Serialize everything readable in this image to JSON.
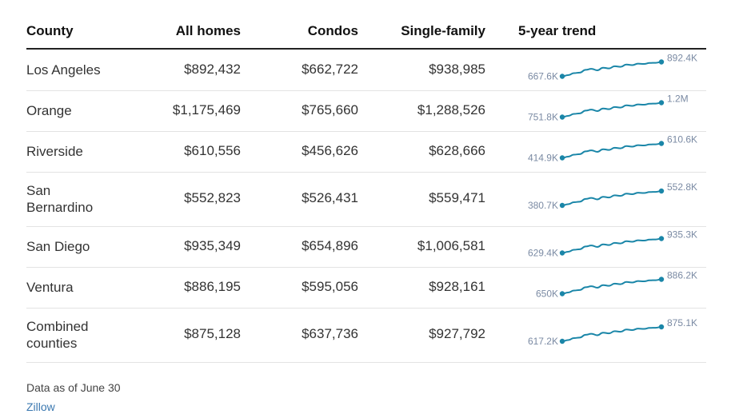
{
  "header": {
    "county": "County",
    "all_homes": "All homes",
    "condos": "Condos",
    "single_family": "Single-family",
    "trend": "5-year trend"
  },
  "chart_data": {
    "type": "table",
    "columns": [
      "County",
      "All homes",
      "Condos",
      "Single-family",
      "5-year trend"
    ],
    "rows": [
      {
        "county": "Los Angeles",
        "all_homes": "$892,432",
        "condos": "$662,722",
        "single_family": "$938,985",
        "trend": {
          "start_label": "667.6K",
          "end_label": "892.4K",
          "start": 667.6,
          "end": 892.4
        }
      },
      {
        "county": "Orange",
        "all_homes": "$1,175,469",
        "condos": "$765,660",
        "single_family": "$1,288,526",
        "trend": {
          "start_label": "751.8K",
          "end_label": "1.2M",
          "start": 751.8,
          "end": 1175.5
        }
      },
      {
        "county": "Riverside",
        "all_homes": "$610,556",
        "condos": "$456,626",
        "single_family": "$628,666",
        "trend": {
          "start_label": "414.9K",
          "end_label": "610.6K",
          "start": 414.9,
          "end": 610.6
        }
      },
      {
        "county": "San Bernardino",
        "all_homes": "$552,823",
        "condos": "$526,431",
        "single_family": "$559,471",
        "trend": {
          "start_label": "380.7K",
          "end_label": "552.8K",
          "start": 380.7,
          "end": 552.8
        }
      },
      {
        "county": "San Diego",
        "all_homes": "$935,349",
        "condos": "$654,896",
        "single_family": "$1,006,581",
        "trend": {
          "start_label": "629.4K",
          "end_label": "935.3K",
          "start": 629.4,
          "end": 935.3
        }
      },
      {
        "county": "Ventura",
        "all_homes": "$886,195",
        "condos": "$595,056",
        "single_family": "$928,161",
        "trend": {
          "start_label": "650K",
          "end_label": "886.2K",
          "start": 650,
          "end": 886.2
        }
      },
      {
        "county": "Combined counties",
        "all_homes": "$875,128",
        "condos": "$637,736",
        "single_family": "$927,792",
        "trend": {
          "start_label": "617.2K",
          "end_label": "875.1K",
          "start": 617.2,
          "end": 875.1
        }
      }
    ],
    "trend_shape": [
      0,
      0.08,
      0.22,
      0.26,
      0.45,
      0.52,
      0.42,
      0.6,
      0.55,
      0.7,
      0.66,
      0.82,
      0.78,
      0.88,
      0.86,
      0.93,
      0.94,
      1.0
    ],
    "colors": {
      "line": "#1a86a8",
      "label": "#7a8aa3",
      "rule": "#e3e3e3"
    }
  },
  "footer": {
    "note": "Data as of June 30",
    "source": "Zillow"
  }
}
